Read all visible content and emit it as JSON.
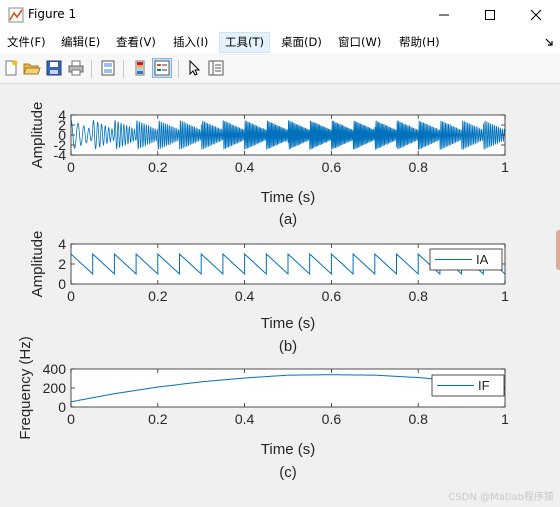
{
  "window": {
    "title": "Figure 1",
    "icons": [
      "matlab-figure-icon",
      "minimize-icon",
      "maximize-icon",
      "close-icon"
    ]
  },
  "menu": {
    "items": [
      "文件(F)",
      "编辑(E)",
      "查看(V)",
      "插入(I)",
      "工具(T)",
      "桌面(D)",
      "窗口(W)",
      "帮助(H)"
    ],
    "active_index": 4
  },
  "toolbar": {
    "icons": [
      "new-figure-icon",
      "open-file-icon",
      "save-icon",
      "print-icon",
      "print-preview-icon",
      "colorbar-icon",
      "legend-icon",
      "pointer-icon",
      "property-inspector-icon"
    ],
    "pressed": "legend-icon"
  },
  "colors": {
    "line": "#0072bd",
    "axes_bg": "#ffffff",
    "figure_bg": "#f0f0f0"
  },
  "chart_data": [
    {
      "type": "line",
      "caption": "(a)",
      "xlabel": "Time (s)",
      "ylabel": "Amplitude",
      "xlim": [
        0,
        1
      ],
      "ylim": [
        -4,
        4
      ],
      "x_ticks": [
        "0",
        "0.2",
        "0.4",
        "0.6",
        "0.8",
        "1"
      ],
      "y_ticks": [
        "4",
        "2",
        "0",
        "-2",
        "-4"
      ],
      "signal": "chirp with sawtooth amplitude envelope: s(t) = IA(t)·cos(2π∫IF dt)"
    },
    {
      "type": "line",
      "caption": "(b)",
      "xlabel": "Time (s)",
      "ylabel": "Amplitude",
      "xlim": [
        0,
        1
      ],
      "ylim": [
        0,
        4
      ],
      "x_ticks": [
        "0",
        "0.2",
        "0.4",
        "0.6",
        "0.8",
        "1"
      ],
      "y_ticks": [
        "4",
        "2",
        "0"
      ],
      "series": [
        {
          "name": "IA",
          "sawtooth_period": 0.05,
          "high": 3.0,
          "low": 1.0
        }
      ],
      "legend": "right"
    },
    {
      "type": "line",
      "caption": "(c)",
      "xlabel": "Time (s)",
      "ylabel": "Frequency (Hz)",
      "xlim": [
        0,
        1
      ],
      "ylim": [
        0,
        400
      ],
      "x_ticks": [
        "0",
        "0.2",
        "0.4",
        "0.6",
        "0.8",
        "1"
      ],
      "y_ticks": [
        "400",
        "200",
        "0"
      ],
      "series": [
        {
          "name": "IF",
          "x": [
            0,
            0.1,
            0.2,
            0.3,
            0.4,
            0.5,
            0.6,
            0.7,
            0.8,
            0.9,
            1.0
          ],
          "y": [
            55,
            140,
            210,
            265,
            305,
            335,
            340,
            335,
            310,
            270,
            210
          ]
        }
      ],
      "legend": "right"
    }
  ],
  "watermark": "CSDN @Matlab程序猿"
}
